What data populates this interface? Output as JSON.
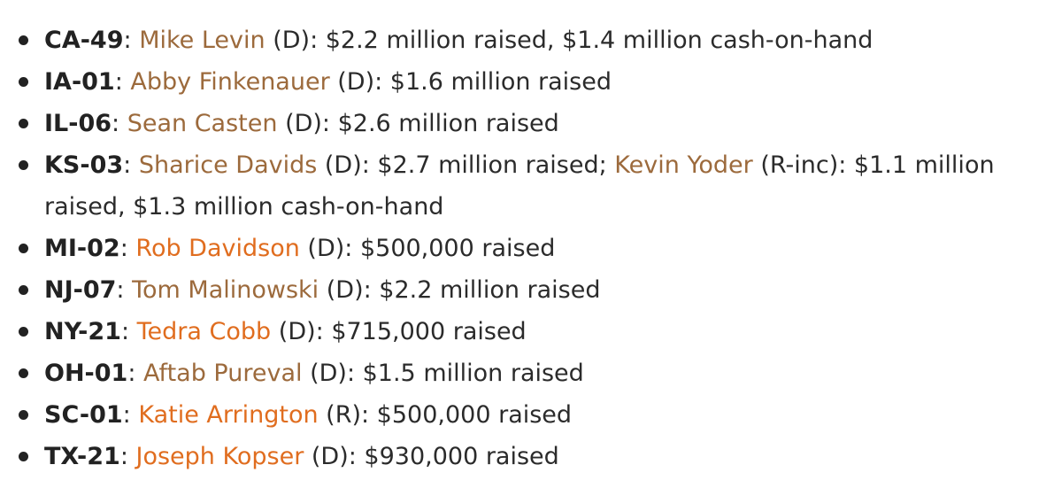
{
  "colors": {
    "visited_link": "#9c6a3c",
    "active_link": "#e06d1f",
    "text": "#2b2b2b"
  },
  "items": [
    {
      "district": "CA-49",
      "candidate": "Mike Levin",
      "link_state": "visited",
      "detail": " (D): $2.2 million raised, $1.4 million cash-on-hand"
    },
    {
      "district": "IA-01",
      "candidate": "Abby Finkenauer",
      "link_state": "visited",
      "detail": " (D): $1.6 million raised"
    },
    {
      "district": "IL-06",
      "candidate": "Sean Casten",
      "link_state": "visited",
      "detail": " (D): $2.6 million raised"
    },
    {
      "district": "KS-03",
      "candidate": "Sharice Davids",
      "link_state": "visited",
      "detail": " (D): $2.7 million raised; ",
      "candidate2": "Kevin Yoder",
      "link_state2": "visited",
      "detail2": " (R-inc): $1.1 million raised, $1.3 million cash-on-hand"
    },
    {
      "district": "MI-02",
      "candidate": "Rob Davidson",
      "link_state": "active",
      "detail": " (D): $500,000 raised"
    },
    {
      "district": "NJ-07",
      "candidate": "Tom Malinowski",
      "link_state": "visited",
      "detail": " (D): $2.2 million raised"
    },
    {
      "district": "NY-21",
      "candidate": "Tedra Cobb",
      "link_state": "active",
      "detail": " (D): $715,000 raised"
    },
    {
      "district": "OH-01",
      "candidate": "Aftab Pureval",
      "link_state": "visited",
      "detail": " (D): $1.5 million raised"
    },
    {
      "district": "SC-01",
      "candidate": "Katie Arrington",
      "link_state": "active",
      "detail": " (R): $500,000 raised"
    },
    {
      "district": "TX-21",
      "candidate": "Joseph Kopser",
      "link_state": "active",
      "detail": " (D): $930,000 raised"
    }
  ]
}
